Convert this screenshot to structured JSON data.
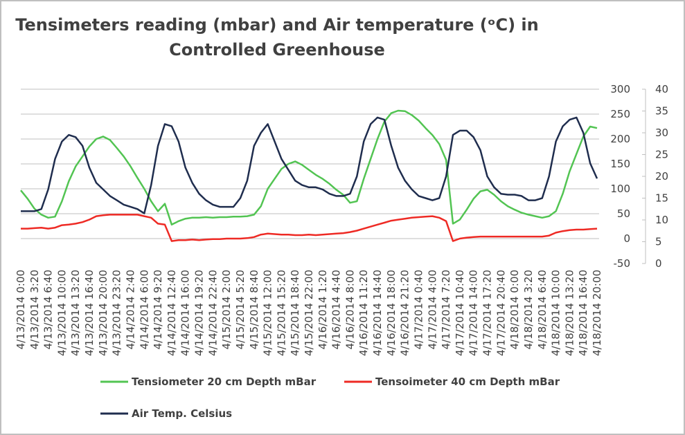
{
  "chart_data": {
    "type": "line",
    "title": [
      "Tensimeters reading (mbar) and Air temperature (ᵒC) in",
      "Controlled Greenhouse"
    ],
    "categories": [
      "4/13/2014 0:00",
      null,
      "4/13/2014 3:20",
      null,
      "4/13/2014 6:40",
      null,
      "4/13/2014 10:00",
      null,
      "4/13/2014 13:20",
      null,
      "4/13/2014 16:40",
      null,
      "4/13/2014 20:00",
      null,
      "4/13/2014 23:20",
      null,
      "4/14/2014 2:40",
      null,
      "4/14/2014 6:00",
      null,
      "4/14/2014 9:20",
      null,
      "4/14/2014 12:40",
      null,
      "4/14/2014 16:00",
      null,
      "4/14/2014 19:20",
      null,
      "4/14/2014 22:40",
      null,
      "4/15/2014 2:00",
      null,
      "4/15/2014 5:20",
      null,
      "4/15/2014 8:40",
      null,
      "4/15/2014 12:00",
      null,
      "4/15/2014 15:20",
      null,
      "4/15/2014 18:40",
      null,
      "4/15/2014 22:00",
      null,
      "4/16/2014 1:20",
      null,
      "4/16/2014 4:40",
      null,
      "4/16/2014 8:00",
      null,
      "4/16/2014 11:20",
      null,
      "4/16/2014 14:40",
      null,
      "4/16/2014 18:00",
      null,
      "4/16/2014 21:20",
      null,
      "4/17/2014 0:40",
      null,
      "4/17/2014 4:00",
      null,
      "4/17/2014 7:20",
      null,
      "4/17/2014 10:40",
      null,
      "4/17/2014 14:00",
      null,
      "4/17/2014 17:20",
      null,
      "4/17/2014 20:40",
      null,
      "4/18/2014 0:00",
      null,
      "4/18/2014 3:20",
      null,
      "4/18/2014 6:40",
      null,
      "4/18/2014 10:00",
      null,
      "4/18/2014 13:20",
      null,
      "4/18/2014 16:40",
      null,
      "4/18/2014 20:00"
    ],
    "series": [
      {
        "name": "Tensiometer 20 cm Depth mBar",
        "color": "#52c452",
        "values": [
          97,
          80,
          60,
          48,
          42,
          44,
          75,
          115,
          145,
          165,
          185,
          200,
          205,
          198,
          182,
          165,
          145,
          122,
          100,
          75,
          55,
          70,
          28,
          35,
          40,
          42,
          42,
          43,
          42,
          43,
          43,
          44,
          44,
          45,
          48,
          65,
          100,
          120,
          140,
          150,
          155,
          148,
          138,
          128,
          120,
          110,
          98,
          88,
          72,
          75,
          120,
          160,
          200,
          235,
          252,
          257,
          256,
          248,
          237,
          222,
          208,
          190,
          158,
          30,
          38,
          58,
          80,
          95,
          98,
          88,
          75,
          65,
          58,
          52,
          48,
          45,
          42,
          45,
          55,
          90,
          135,
          170,
          205,
          225,
          222
        ]
      },
      {
        "name": "Tensoimeter 40 cm Depth mBar",
        "color": "#ee2a24",
        "values": [
          20,
          20,
          21,
          22,
          20,
          22,
          27,
          28,
          30,
          33,
          38,
          45,
          47,
          48,
          48,
          48,
          48,
          48,
          45,
          42,
          30,
          28,
          -5,
          -3,
          -3,
          -2,
          -3,
          -2,
          -1,
          -1,
          0,
          0,
          0,
          1,
          3,
          8,
          10,
          9,
          8,
          8,
          7,
          7,
          8,
          7,
          8,
          9,
          10,
          11,
          13,
          16,
          20,
          24,
          28,
          32,
          36,
          38,
          40,
          42,
          43,
          44,
          45,
          42,
          35,
          -5,
          0,
          2,
          3,
          4,
          4,
          4,
          4,
          4,
          4,
          4,
          4,
          4,
          4,
          6,
          12,
          15,
          17,
          18,
          18,
          19,
          20
        ]
      },
      {
        "name": "Air Temp. Celsius",
        "color": "#1f2d4e",
        "axis": "y2",
        "values": [
          12,
          12,
          12,
          12.5,
          17,
          24,
          28,
          29.5,
          29,
          27,
          22,
          18.5,
          17,
          15.5,
          14.5,
          13.5,
          13,
          12.5,
          11.5,
          18,
          27,
          32,
          31.5,
          28,
          22,
          18.5,
          16,
          14.5,
          13.5,
          13,
          13,
          13,
          15,
          19,
          27,
          30,
          32,
          28,
          24,
          21.5,
          19,
          18,
          17.5,
          17.5,
          17,
          16,
          15.5,
          15.5,
          16,
          20,
          28,
          32,
          33.5,
          33,
          27,
          22,
          19,
          17,
          15.5,
          15,
          14.5,
          15,
          20,
          29.5,
          30.5,
          30.5,
          29,
          26,
          20,
          17.5,
          16,
          15.8,
          15.8,
          15.5,
          14.5,
          14.5,
          15,
          20,
          28,
          31.5,
          33,
          33.5,
          30,
          23,
          19.5
        ]
      }
    ],
    "ylim": [
      -50,
      300
    ],
    "yticks": [
      -50,
      0,
      50,
      100,
      150,
      200,
      250,
      300
    ],
    "y2lim": [
      0,
      40
    ],
    "y2ticks": [
      0,
      5,
      10,
      15,
      20,
      25,
      30,
      35,
      40
    ],
    "grid": true,
    "legend": "bottom"
  }
}
